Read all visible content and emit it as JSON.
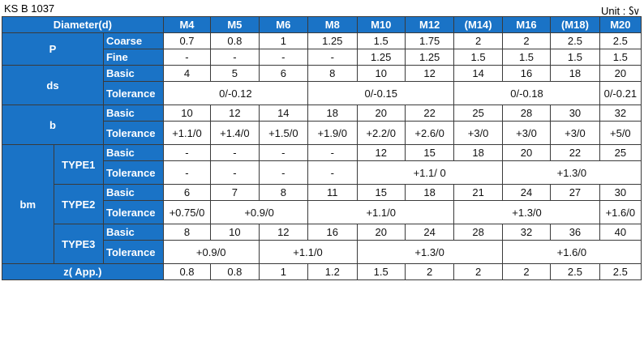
{
  "standard": "KS B 1037",
  "unit": "Unit : ㏜",
  "header": {
    "title": "Diameter(d)",
    "sizes": [
      "M4",
      "M5",
      "M6",
      "M8",
      "M10",
      "M12",
      "(M14)",
      "M16",
      "(M18)",
      "M20"
    ]
  },
  "labels": {
    "p": "P",
    "coarse": "Coarse",
    "fine": "Fine",
    "ds": "ds",
    "b": "b",
    "bm": "bm",
    "basic": "Basic",
    "tolerance": "Tolerance",
    "type1": "TYPE1",
    "type2": "TYPE2",
    "type3": "TYPE3",
    "z": "z( App.)"
  },
  "rows": {
    "p_coarse": [
      "0.7",
      "0.8",
      "1",
      "1.25",
      "1.5",
      "1.75",
      "2",
      "2",
      "2.5",
      "2.5"
    ],
    "p_fine": [
      "-",
      "-",
      "-",
      "-",
      "1.25",
      "1.25",
      "1.5",
      "1.5",
      "1.5",
      "1.5"
    ],
    "ds_basic": [
      "4",
      "5",
      "6",
      "8",
      "10",
      "12",
      "14",
      "16",
      "18",
      "20"
    ],
    "ds_tol": [
      "0/-0.12",
      "0/-0.15",
      "0/-0.18",
      "0/-0.21"
    ],
    "b_basic": [
      "10",
      "12",
      "14",
      "18",
      "20",
      "22",
      "25",
      "28",
      "30",
      "32"
    ],
    "b_tol": [
      "+1.1/0",
      "+1.4/0",
      "+1.5/0",
      "+1.9/0",
      "+2.2/0",
      "+2.6/0",
      "+3/0",
      "+3/0",
      "+3/0",
      "+5/0"
    ],
    "t1_basic": [
      "-",
      "-",
      "-",
      "-",
      "12",
      "15",
      "18",
      "20",
      "22",
      "25"
    ],
    "t1_tol": [
      "-",
      "-",
      "-",
      "-",
      "+1.1/ 0",
      "+1.3/0"
    ],
    "t2_basic": [
      "6",
      "7",
      "8",
      "11",
      "15",
      "18",
      "21",
      "24",
      "27",
      "30"
    ],
    "t2_tol": [
      "+0.75/0",
      "+0.9/0",
      "+1.1/0",
      "+1.3/0",
      "+1.6/0"
    ],
    "t3_basic": [
      "8",
      "10",
      "12",
      "16",
      "20",
      "24",
      "28",
      "32",
      "36",
      "40"
    ],
    "t3_tol": [
      "+0.9/0",
      "+1.1/0",
      "+1.3/0",
      "+1.6/0"
    ],
    "z": [
      "0.8",
      "0.8",
      "1",
      "1.2",
      "1.5",
      "2",
      "2",
      "2",
      "2.5",
      "2.5"
    ]
  },
  "colors": {
    "header_blue": "#1a73c6",
    "header_text": "#ffffff",
    "border": "#3a3a3a"
  }
}
